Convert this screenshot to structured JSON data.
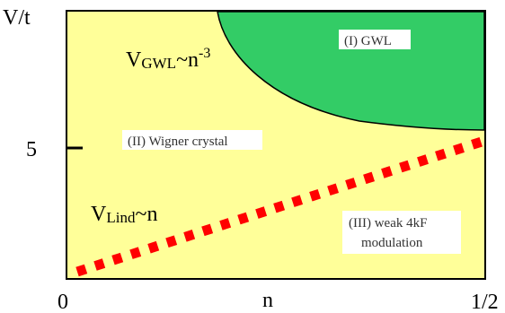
{
  "axes": {
    "y_label": "V/t",
    "y_tick": "5",
    "x_labels": {
      "start": "0",
      "middle": "n",
      "end": "1/2"
    }
  },
  "regions": {
    "gwl": "(I) GWL",
    "wigner": "(II) Wigner crystal",
    "weak_line1": "(III) weak 4kF",
    "weak_line2": "modulation"
  },
  "formulas": {
    "gwl": {
      "base": "V",
      "sub": "GWL",
      "rest": "~n",
      "sup": "-3"
    },
    "lind": {
      "base": "V",
      "sub": "Lind",
      "rest": "~n"
    }
  },
  "colors": {
    "background_region": "#ffff99",
    "gwl_region": "#33cc66",
    "lind_line": "#ff0000"
  }
}
